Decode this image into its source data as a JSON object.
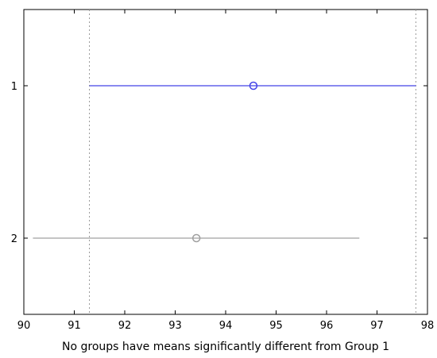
{
  "chart_data": {
    "type": "scatter",
    "title": "",
    "xlabel": "No groups have means significantly different from Group 1",
    "ylabel": "",
    "xlim": [
      90,
      98
    ],
    "ylim": [
      0.5,
      2.5
    ],
    "y_reversed": true,
    "x_ticks": [
      90,
      91,
      92,
      93,
      94,
      95,
      96,
      97,
      98
    ],
    "y_ticks": [
      1,
      2
    ],
    "grid": false,
    "series": [
      {
        "group": 1,
        "mean": 94.55,
        "lower": 91.3,
        "upper": 97.77,
        "color": "#4444e8"
      },
      {
        "group": 2,
        "mean": 93.42,
        "lower": 90.18,
        "upper": 96.65,
        "color": "#a0a0a0"
      }
    ],
    "reference_lines": [
      91.3,
      97.77
    ],
    "reference_line_color": "#999999"
  }
}
